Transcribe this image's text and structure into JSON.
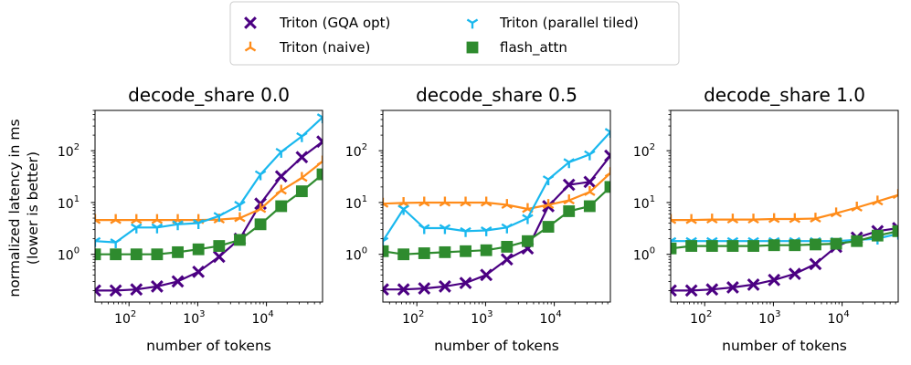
{
  "chart_data": {
    "type": "line",
    "ylabel": [
      "normalized latency in ms",
      "(lower is better)"
    ],
    "xlabel": "number of tokens",
    "xscale": "log",
    "yscale": "log",
    "xlim": [
      32,
      65536
    ],
    "ylim": [
      0.12,
      600
    ],
    "xticks": [
      {
        "value": 100,
        "base": "10",
        "exp": "2"
      },
      {
        "value": 1000,
        "base": "10",
        "exp": "3"
      },
      {
        "value": 10000,
        "base": "10",
        "exp": "4"
      }
    ],
    "yticks": [
      {
        "value": 1,
        "base": "10",
        "exp": "0"
      },
      {
        "value": 10,
        "base": "10",
        "exp": "1"
      },
      {
        "value": 100,
        "base": "10",
        "exp": "2"
      }
    ],
    "legend": [
      {
        "label": "Triton (GQA opt)",
        "color": "#4b0082",
        "marker": "x"
      },
      {
        "label": "Triton (naive)",
        "color": "#ff8c1a",
        "marker": "tri_up"
      },
      {
        "label": "Triton (parallel tiled)",
        "color": "#1ab8ee",
        "marker": "tri_down"
      },
      {
        "label": "flash_attn",
        "color": "#2e8b2e",
        "marker": "square"
      }
    ],
    "x": [
      32,
      64,
      128,
      256,
      512,
      1024,
      2048,
      4096,
      8192,
      16384,
      32768,
      65536
    ],
    "panels": [
      {
        "title": "decode_share 0.0",
        "series": [
          {
            "name": "Triton (GQA opt)",
            "values": [
              0.2,
              0.2,
              0.21,
              0.24,
              0.3,
              0.46,
              0.9,
              2.0,
              9.5,
              32,
              75,
              150
            ]
          },
          {
            "name": "Triton (naive)",
            "values": [
              4.6,
              4.6,
              4.6,
              4.6,
              4.6,
              4.6,
              4.7,
              5.0,
              7.5,
              17,
              30,
              62
            ]
          },
          {
            "name": "Triton (parallel tiled)",
            "values": [
              1.8,
              1.7,
              3.3,
              3.3,
              3.8,
              4.0,
              5.5,
              9.0,
              35,
              95,
              190,
              440
            ]
          },
          {
            "name": "flash_attn",
            "values": [
              1.0,
              1.0,
              1.0,
              1.0,
              1.1,
              1.25,
              1.45,
              1.9,
              3.8,
              8.5,
              16.5,
              35
            ]
          }
        ]
      },
      {
        "title": "decode_share 0.5",
        "series": [
          {
            "name": "Triton (GQA opt)",
            "values": [
              0.21,
              0.21,
              0.22,
              0.24,
              0.28,
              0.4,
              0.8,
              1.3,
              8.5,
              22,
              25,
              80
            ]
          },
          {
            "name": "Triton (naive)",
            "values": [
              9.5,
              9.8,
              10,
              10,
              10,
              10,
              9,
              7.5,
              9,
              11,
              16,
              37
            ]
          },
          {
            "name": "Triton (parallel tiled)",
            "values": [
              1.8,
              7.5,
              3.2,
              3.2,
              2.8,
              2.9,
              3.3,
              5.0,
              28,
              60,
              85,
              230
            ]
          },
          {
            "name": "flash_attn",
            "values": [
              1.15,
              1.0,
              1.05,
              1.1,
              1.15,
              1.2,
              1.4,
              1.8,
              3.4,
              6.8,
              8.5,
              20
            ]
          }
        ]
      },
      {
        "title": "decode_share 1.0",
        "series": [
          {
            "name": "Triton (GQA opt)",
            "values": [
              0.2,
              0.2,
              0.21,
              0.23,
              0.26,
              0.32,
              0.42,
              0.65,
              1.4,
              2.1,
              2.8,
              3.2
            ]
          },
          {
            "name": "Triton (naive)",
            "values": [
              4.6,
              4.6,
              4.7,
              4.7,
              4.7,
              4.8,
              4.8,
              4.9,
              6.2,
              8.0,
              10.5,
              14
            ]
          },
          {
            "name": "Triton (parallel tiled)",
            "values": [
              1.8,
              1.8,
              1.8,
              1.8,
              1.8,
              1.8,
              1.8,
              1.8,
              1.8,
              1.9,
              2.0,
              2.5
            ]
          },
          {
            "name": "flash_attn",
            "values": [
              1.3,
              1.45,
              1.45,
              1.45,
              1.45,
              1.5,
              1.5,
              1.55,
              1.6,
              1.8,
              2.3,
              2.8
            ]
          }
        ]
      }
    ]
  }
}
